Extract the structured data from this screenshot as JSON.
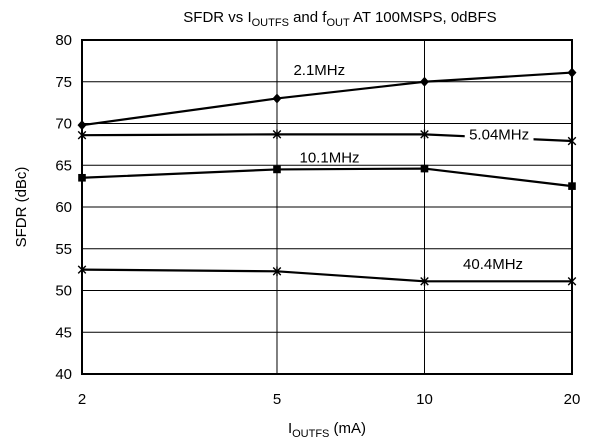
{
  "chart_data": {
    "type": "line",
    "title": {
      "prefix": "SFDR vs I",
      "sub1": "OUTFS",
      "mid": " and f",
      "sub2": "OUT",
      "suffix": " AT 100MSPS, 0dBFS"
    },
    "xlabel": {
      "main": "I",
      "sub": "OUTFS",
      "suffix": " (mA)"
    },
    "ylabel": "SFDR (dBc)",
    "x_scale": "log",
    "x_ticks": [
      2,
      5,
      10,
      20
    ],
    "x_tick_labels": [
      "2",
      "5",
      "10",
      "20"
    ],
    "xlim": [
      2,
      20
    ],
    "ylim": [
      40,
      80
    ],
    "y_ticks": [
      40,
      45,
      50,
      55,
      60,
      65,
      70,
      75,
      80
    ],
    "y_tick_labels": [
      "40",
      "45",
      "50",
      "55",
      "60",
      "65",
      "70",
      "75",
      "80"
    ],
    "grid": true,
    "x": [
      2,
      5,
      10,
      20
    ],
    "series": [
      {
        "name": "2.1MHz",
        "marker": "diamond",
        "values": [
          69.8,
          73.0,
          75.0,
          76.1
        ]
      },
      {
        "name": "5.04MHz",
        "marker": "star",
        "values": [
          68.6,
          68.7,
          68.7,
          67.9
        ]
      },
      {
        "name": "10.1MHz",
        "marker": "square",
        "values": [
          63.5,
          64.5,
          64.6,
          62.5
        ]
      },
      {
        "name": "40.4MHz",
        "marker": "star",
        "values": [
          52.5,
          52.3,
          51.1,
          51.1
        ]
      }
    ],
    "colors": {
      "line": "#000000",
      "grid": "#000000",
      "background": "#ffffff"
    }
  }
}
